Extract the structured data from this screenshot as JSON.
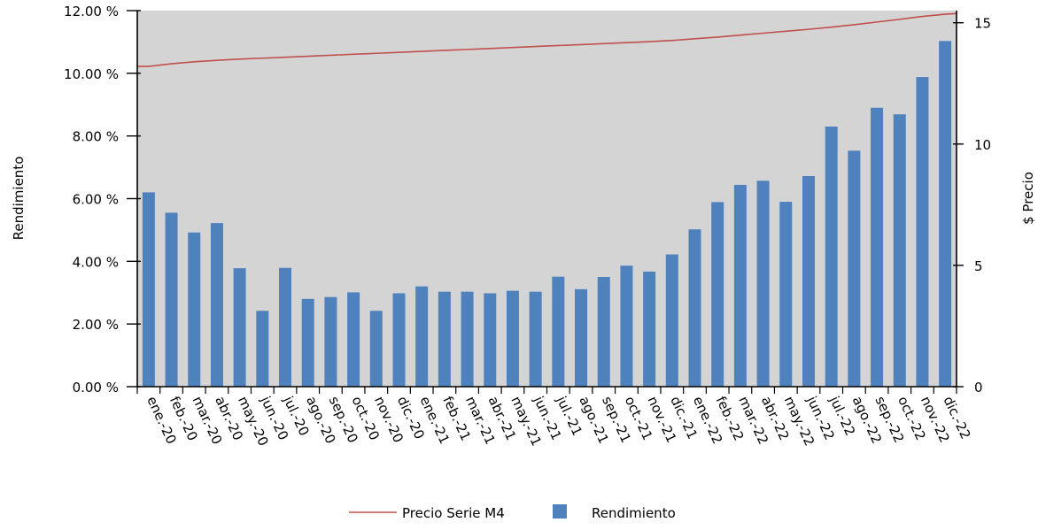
{
  "chart_data": {
    "type": "bar",
    "categories": [
      "ene.-20",
      "feb.-20",
      "mar.-20",
      "abr.-20",
      "may.-20",
      "jun.-20",
      "jul.-20",
      "ago.-20",
      "sep.-20",
      "oct.-20",
      "nov.-20",
      "dic.-20",
      "ene.-21",
      "feb.-21",
      "mar.-21",
      "abr.-21",
      "may.-21",
      "jun.-21",
      "jul.-21",
      "ago.-21",
      "sep.-21",
      "oct.-21",
      "nov.-21",
      "dic.-21",
      "ene.-22",
      "feb.-22",
      "mar.-22",
      "abr.-22",
      "may.-22",
      "jun.-22",
      "jul.-22",
      "ago.-22",
      "sep.-22",
      "oct.-22",
      "nov.-22",
      "dic.-22"
    ],
    "series": [
      {
        "name": "Rendimiento",
        "type": "bar",
        "axis": "left",
        "color": "#4f81bd",
        "values": [
          6.2,
          5.55,
          4.92,
          5.22,
          3.78,
          2.42,
          3.79,
          2.8,
          2.86,
          3.01,
          2.42,
          2.98,
          3.2,
          3.03,
          3.03,
          2.98,
          3.06,
          3.03,
          3.51,
          3.11,
          3.5,
          3.86,
          3.67,
          4.22,
          5.02,
          5.89,
          6.44,
          6.57,
          5.9,
          6.72,
          8.3,
          7.53,
          8.9,
          8.69,
          9.88,
          11.03
        ]
      },
      {
        "name": "Precio Serie M4",
        "type": "line",
        "axis": "right",
        "color": "#c0504d",
        "values": [
          13.2,
          13.31,
          13.39,
          13.45,
          13.5,
          13.54,
          13.58,
          13.62,
          13.66,
          13.7,
          13.74,
          13.78,
          13.82,
          13.86,
          13.9,
          13.94,
          13.98,
          14.02,
          14.06,
          14.1,
          14.14,
          14.18,
          14.22,
          14.27,
          14.34,
          14.41,
          14.49,
          14.57,
          14.65,
          14.73,
          14.82,
          14.92,
          15.03,
          15.14,
          15.26,
          15.35
        ]
      }
    ],
    "xlabel": "",
    "ylabel": "Rendimiento",
    "y2label": "$ Precio",
    "ylim": [
      0,
      12
    ],
    "y2lim": [
      0,
      15.5
    ],
    "yticks": [
      "0.00 %",
      "2.00 %",
      "4.00 %",
      "6.00 %",
      "8.00 %",
      "10.00 %",
      "12.00 %"
    ],
    "y2ticks": [
      "0",
      "5",
      "10",
      "15"
    ],
    "legend_position": "bottom",
    "plot_background": "#d4d4d4",
    "grid": false
  }
}
